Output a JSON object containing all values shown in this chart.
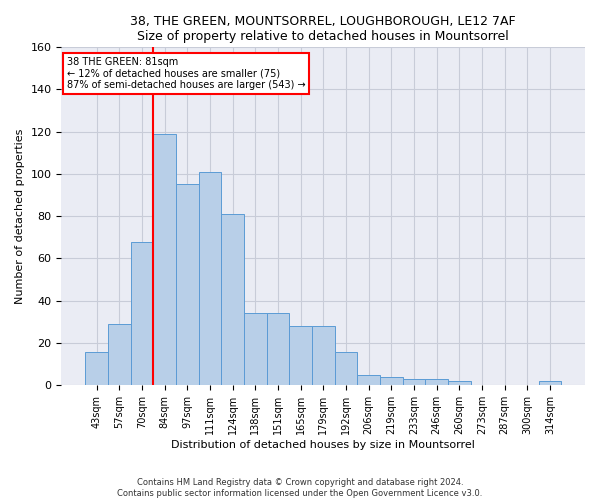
{
  "title": "38, THE GREEN, MOUNTSORREL, LOUGHBOROUGH, LE12 7AF",
  "subtitle": "Size of property relative to detached houses in Mountsorrel",
  "xlabel": "Distribution of detached houses by size in Mountsorrel",
  "ylabel": "Number of detached properties",
  "footer_line1": "Contains HM Land Registry data © Crown copyright and database right 2024.",
  "footer_line2": "Contains public sector information licensed under the Open Government Licence v3.0.",
  "categories": [
    "43sqm",
    "57sqm",
    "70sqm",
    "84sqm",
    "97sqm",
    "111sqm",
    "124sqm",
    "138sqm",
    "151sqm",
    "165sqm",
    "179sqm",
    "192sqm",
    "206sqm",
    "219sqm",
    "233sqm",
    "246sqm",
    "260sqm",
    "273sqm",
    "287sqm",
    "300sqm",
    "314sqm"
  ],
  "values": [
    16,
    29,
    68,
    119,
    95,
    101,
    81,
    34,
    34,
    28,
    28,
    16,
    5,
    4,
    3,
    3,
    2,
    0,
    0,
    0,
    2
  ],
  "bar_color": "#b8cfe8",
  "bar_edge_color": "#5b9bd5",
  "grid_color": "#c8ccd8",
  "background_color": "#eaecf4",
  "annotation_text_line1": "38 THE GREEN: 81sqm",
  "annotation_text_line2": "← 12% of detached houses are smaller (75)",
  "annotation_text_line3": "87% of semi-detached houses are larger (543) →",
  "annotation_box_color": "white",
  "annotation_box_edge_color": "red",
  "vline_color": "red",
  "vline_x": 2.5,
  "ylim": [
    0,
    160
  ],
  "yticks": [
    0,
    20,
    40,
    60,
    80,
    100,
    120,
    140,
    160
  ]
}
